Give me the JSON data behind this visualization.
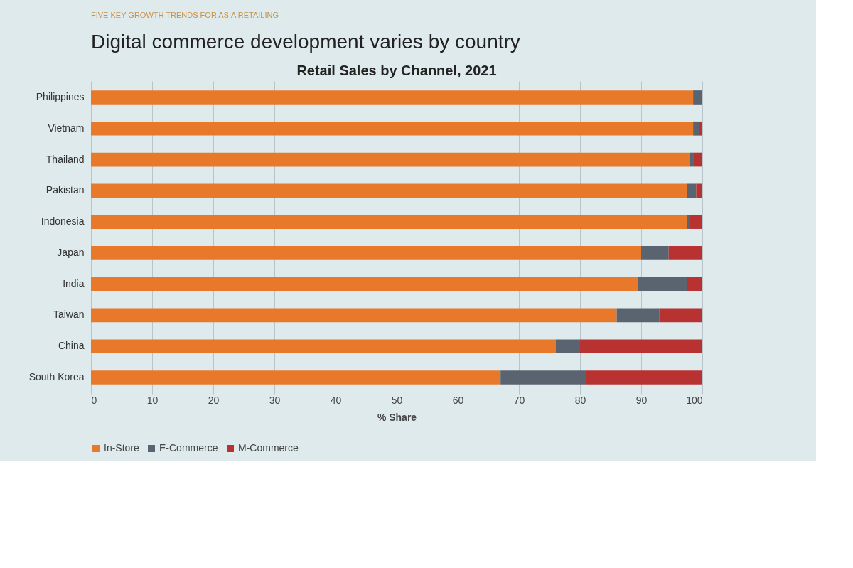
{
  "chart_data": {
    "type": "bar",
    "title": "Retail Sales by Channel, 2021",
    "xlabel": "% Share",
    "annotations": [
      "FIVE KEY GROWTH TRENDS FOR ASIA RETAILING",
      "Digital commerce development varies by country"
    ],
    "orientation": "horizontal",
    "stacked": true,
    "categories": [
      "Philippines",
      "Vietnam",
      "Thailand",
      "Pakistan",
      "Indonesia",
      "Japan",
      "India",
      "Taiwan",
      "China",
      "South Korea"
    ],
    "series": [
      {
        "name": "In-Store",
        "color": "#e8782a",
        "values": [
          98.5,
          98.5,
          98,
          97.5,
          97.5,
          90,
          89.5,
          86,
          76,
          67
        ]
      },
      {
        "name": "E-Commerce",
        "color": "#5a6470",
        "values": [
          1.5,
          1,
          0.5,
          1.5,
          0.5,
          4.5,
          8,
          7,
          4,
          14
        ]
      },
      {
        "name": "M-Commerce",
        "color": "#b83232",
        "values": [
          0,
          0.5,
          1.5,
          1,
          2,
          5.5,
          2.5,
          7,
          20,
          19
        ]
      }
    ],
    "xlim": [
      0,
      100
    ],
    "xticks": [
      0,
      10,
      20,
      30,
      40,
      50,
      60,
      70,
      80,
      90,
      100
    ],
    "grid": "x",
    "legend": "bottom"
  }
}
